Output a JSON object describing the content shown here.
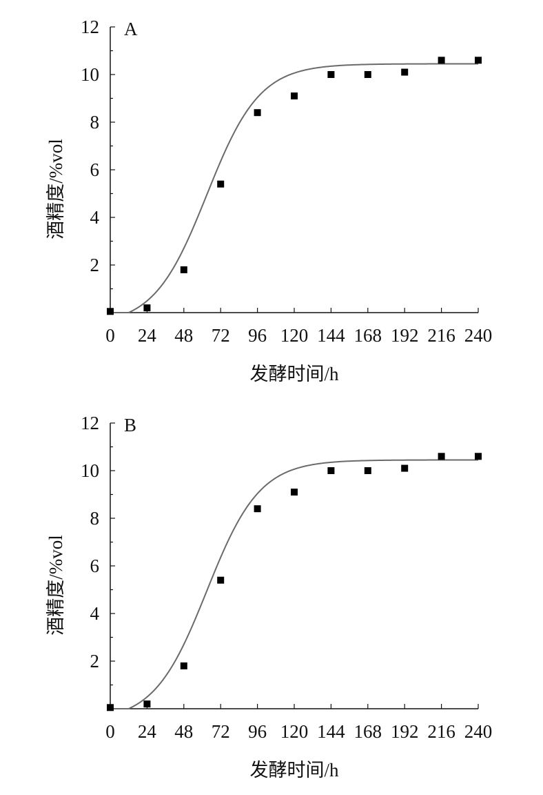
{
  "chart_data": [
    {
      "type": "scatter",
      "panel_label": "A",
      "xlabel": "发酵时间/h",
      "ylabel": "酒精度/%vol",
      "xlim": [
        0,
        240
      ],
      "ylim": [
        0,
        12
      ],
      "x_ticks": [
        0,
        24,
        48,
        72,
        96,
        120,
        144,
        168,
        192,
        216,
        240
      ],
      "y_ticks": [
        2,
        4,
        6,
        8,
        10,
        12
      ],
      "series": [
        {
          "marker": "square",
          "x": [
            0,
            24,
            48,
            72,
            96,
            120,
            144,
            168,
            192,
            216,
            240
          ],
          "y": [
            0.05,
            0.2,
            1.8,
            5.4,
            8.4,
            9.1,
            10.0,
            10.0,
            10.1,
            10.6,
            10.6
          ]
        }
      ],
      "fit_curve": {
        "model": "sigmoid",
        "color": "#6a6a6a"
      }
    },
    {
      "type": "scatter",
      "panel_label": "B",
      "xlabel": "发酵时间/h",
      "ylabel": "酒精度/%vol",
      "xlim": [
        0,
        240
      ],
      "ylim": [
        0,
        12
      ],
      "x_ticks": [
        0,
        24,
        48,
        72,
        96,
        120,
        144,
        168,
        192,
        216,
        240
      ],
      "y_ticks": [
        2,
        4,
        6,
        8,
        10,
        12
      ],
      "series": [
        {
          "marker": "square",
          "x": [
            0,
            24,
            48,
            72,
            96,
            120,
            144,
            168,
            192,
            216,
            240
          ],
          "y": [
            0.05,
            0.2,
            1.8,
            5.4,
            8.4,
            9.1,
            10.0,
            10.0,
            10.1,
            10.6,
            10.6
          ]
        }
      ],
      "fit_curve": {
        "model": "sigmoid",
        "color": "#6a6a6a"
      }
    }
  ]
}
